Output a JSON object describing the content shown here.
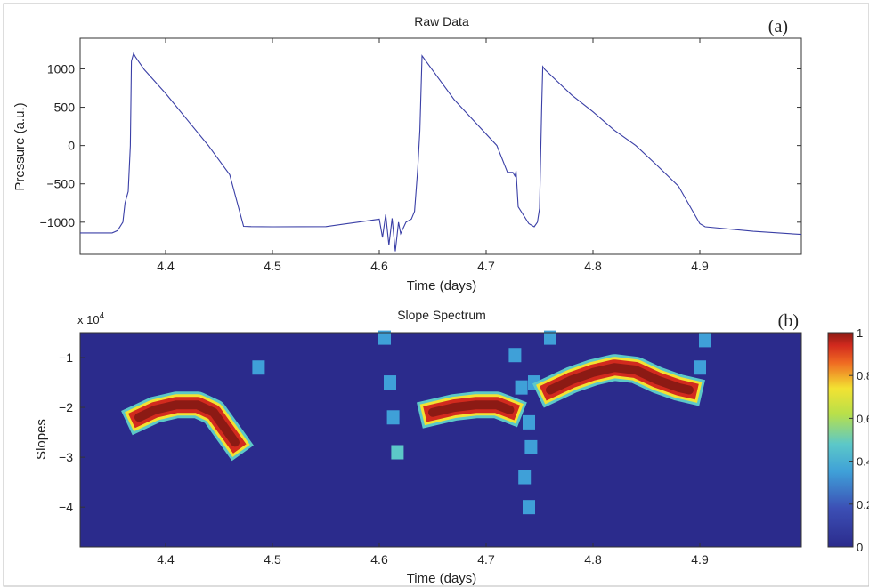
{
  "chart_data": [
    {
      "type": "line",
      "title": "Raw Data",
      "panel_label": "(a)",
      "xlabel": "Time (days)",
      "ylabel": "Pressure (a.u.)",
      "xlim": [
        4.32,
        4.995
      ],
      "ylim": [
        -1420,
        1400
      ],
      "x_ticks": [
        4.4,
        4.5,
        4.6,
        4.7,
        4.8,
        4.9
      ],
      "y_ticks": [
        -1000,
        -500,
        0,
        500,
        1000
      ],
      "x_tick_labels": [
        "4.4",
        "4.5",
        "4.6",
        "4.7",
        "4.8",
        "4.9"
      ],
      "y_tick_labels": [
        "−1000",
        "−500",
        "0",
        "500",
        "1000"
      ],
      "line_color": "#3a3fa6",
      "series": [
        {
          "x": [
            4.32,
            4.35,
            4.355,
            4.36,
            4.362,
            4.365,
            4.367,
            4.368,
            4.37,
            4.372,
            4.38,
            4.4,
            4.42,
            4.44,
            4.46,
            4.473,
            4.48,
            4.5,
            4.55,
            4.58,
            4.6,
            4.603,
            4.606,
            4.609,
            4.612,
            4.615,
            4.618,
            4.62,
            4.625,
            4.63,
            4.633,
            4.636,
            4.638,
            4.64,
            4.65,
            4.67,
            4.69,
            4.71,
            4.72,
            4.725,
            4.727,
            4.728,
            4.73,
            4.74,
            4.745,
            4.748,
            4.75,
            4.752,
            4.753,
            4.755,
            4.78,
            4.8,
            4.82,
            4.84,
            4.86,
            4.88,
            4.9,
            4.905,
            4.95,
            4.995
          ],
          "y": [
            -1140,
            -1140,
            -1110,
            -1000,
            -750,
            -600,
            0,
            1100,
            1200,
            1150,
            990,
            680,
            340,
            0,
            -380,
            -1055,
            -1058,
            -1060,
            -1058,
            -1000,
            -960,
            -1200,
            -900,
            -1300,
            -950,
            -1380,
            -1000,
            -1150,
            -1000,
            -960,
            -860,
            -300,
            200,
            1170,
            980,
            600,
            300,
            0,
            -350,
            -350,
            -400,
            -330,
            -800,
            -1020,
            -1060,
            -1000,
            -820,
            500,
            1030,
            990,
            660,
            440,
            200,
            0,
            -260,
            -530,
            -1020,
            -1060,
            -1120,
            -1160
          ]
        }
      ],
      "grid": false
    },
    {
      "type": "heatmap",
      "title": "Slope Spectrum",
      "panel_label": "(b)",
      "xlabel": "Time (days)",
      "ylabel": "Slopes",
      "y_exponent_label": "x 10",
      "y_exponent_power": "4",
      "xlim": [
        4.32,
        4.995
      ],
      "ylim": [
        -4.8,
        -0.5
      ],
      "x_ticks": [
        4.4,
        4.5,
        4.6,
        4.7,
        4.8,
        4.9
      ],
      "y_ticks": [
        -1,
        -2,
        -3,
        -4
      ],
      "x_tick_labels": [
        "4.4",
        "4.5",
        "4.6",
        "4.7",
        "4.8",
        "4.9"
      ],
      "y_tick_labels": [
        "−1",
        "−2",
        "−3",
        "−4"
      ],
      "colormap": "jet",
      "colorbar": {
        "min": 0,
        "max": 1,
        "ticks": [
          0,
          0.2,
          0.4,
          0.6,
          0.8,
          1
        ],
        "tick_labels": [
          "0",
          "0.2",
          "0.4",
          "0.6",
          "0.8",
          "1"
        ]
      },
      "bands": [
        {
          "x": [
            4.375,
            4.39,
            4.41,
            4.43,
            4.445,
            4.455,
            4.465
          ],
          "y": [
            -2.2,
            -2.05,
            -1.95,
            -1.95,
            -2.1,
            -2.4,
            -2.7
          ],
          "intensity": 1.0
        },
        {
          "x": [
            4.65,
            4.67,
            4.69,
            4.71,
            4.722
          ],
          "y": [
            -2.1,
            -2.0,
            -1.95,
            -1.95,
            -2.05
          ],
          "intensity": 1.0
        },
        {
          "x": [
            4.76,
            4.78,
            4.8,
            4.82,
            4.84,
            4.86,
            4.88,
            4.89
          ],
          "y": [
            -1.65,
            -1.45,
            -1.3,
            -1.2,
            -1.25,
            -1.45,
            -1.6,
            -1.65
          ],
          "intensity": 1.0
        }
      ],
      "spots": [
        {
          "x": 4.487,
          "y": -1.2,
          "v": 0.2
        },
        {
          "x": 4.605,
          "y": -0.6,
          "v": 0.25
        },
        {
          "x": 4.61,
          "y": -1.5,
          "v": 0.3
        },
        {
          "x": 4.613,
          "y": -2.2,
          "v": 0.28
        },
        {
          "x": 4.617,
          "y": -2.9,
          "v": 0.4
        },
        {
          "x": 4.727,
          "y": -0.95,
          "v": 0.35
        },
        {
          "x": 4.733,
          "y": -1.6,
          "v": 0.3
        },
        {
          "x": 4.74,
          "y": -2.3,
          "v": 0.28
        },
        {
          "x": 4.742,
          "y": -2.8,
          "v": 0.3
        },
        {
          "x": 4.736,
          "y": -3.4,
          "v": 0.3
        },
        {
          "x": 4.74,
          "y": -4.0,
          "v": 0.25
        },
        {
          "x": 4.745,
          "y": -1.5,
          "v": 0.22
        },
        {
          "x": 4.76,
          "y": -0.6,
          "v": 0.2
        },
        {
          "x": 4.905,
          "y": -0.65,
          "v": 0.25
        },
        {
          "x": 4.9,
          "y": -1.2,
          "v": 0.2
        }
      ]
    }
  ]
}
